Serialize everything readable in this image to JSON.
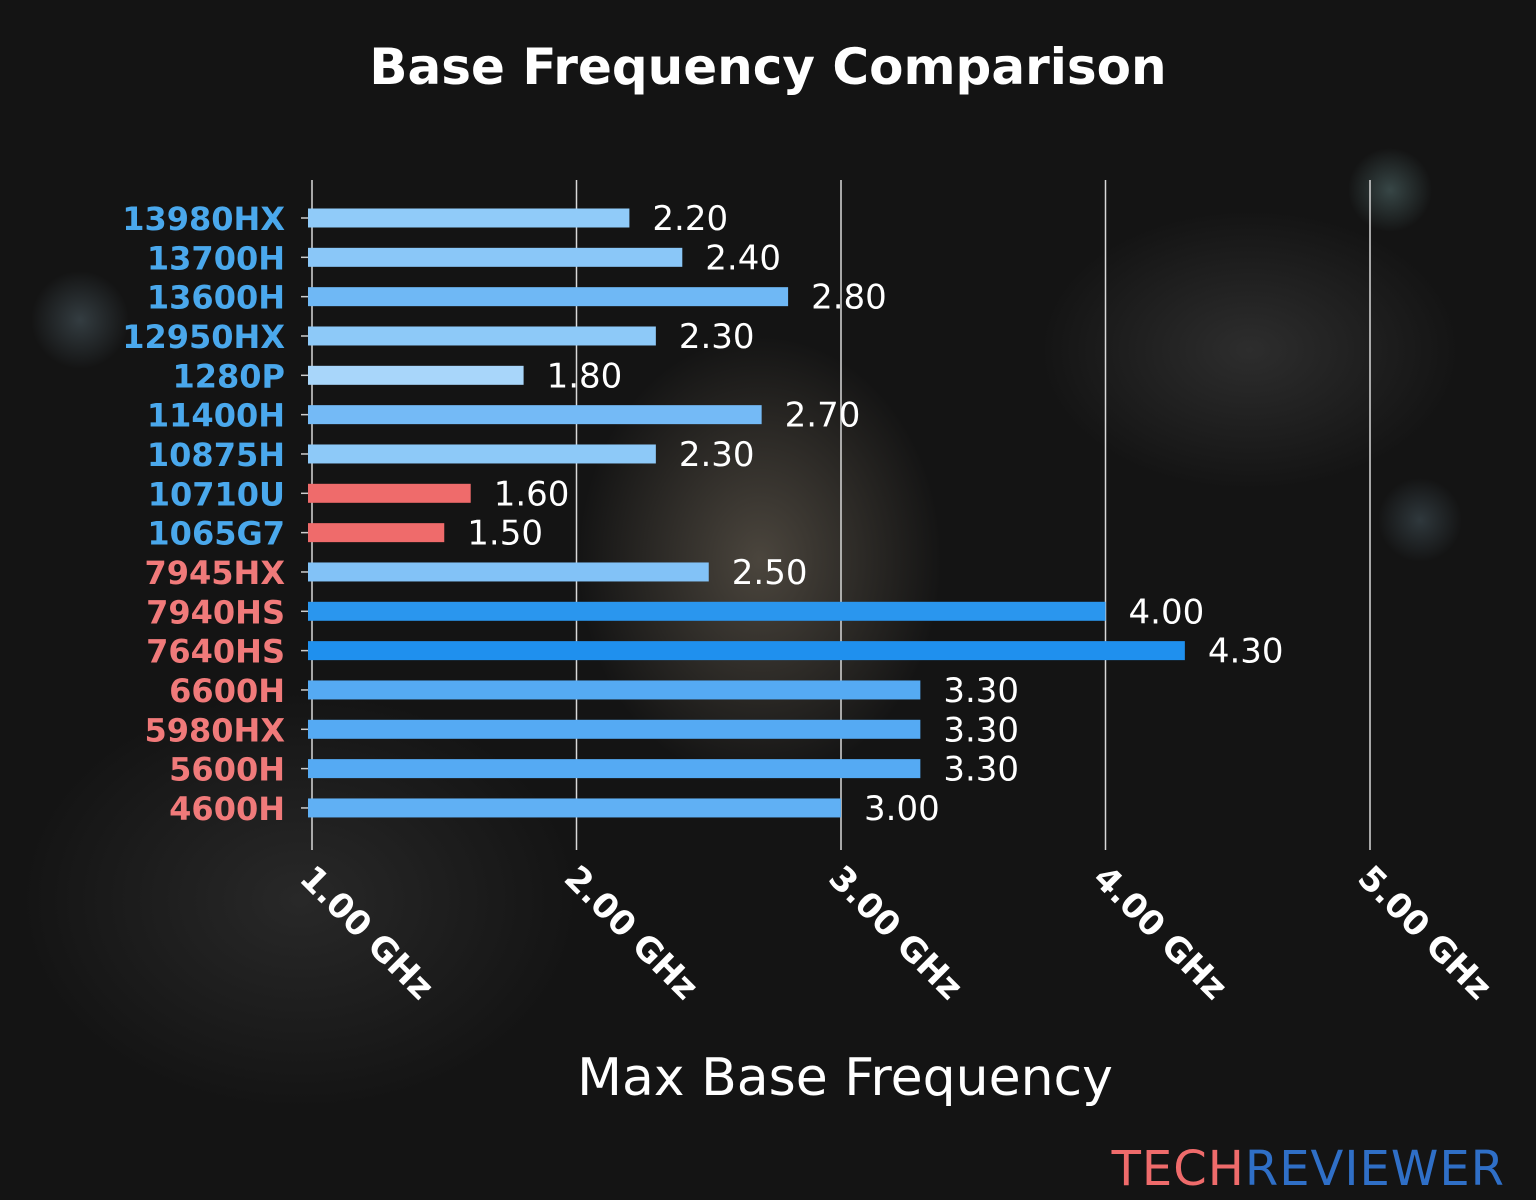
{
  "chart_data": {
    "type": "bar",
    "orientation": "horizontal",
    "title": "Base Frequency Comparison",
    "xlabel": "Max Base Frequency",
    "ylabel": "",
    "xlim": [
      1.0,
      5.0
    ],
    "xticks": [
      1.0,
      2.0,
      3.0,
      4.0,
      5.0
    ],
    "xtick_labels": [
      "1.00 GHz",
      "2.00 GHz",
      "3.00 GHz",
      "4.00 GHz",
      "5.00 GHz"
    ],
    "grid": "vertical",
    "categories": [
      "13980HX",
      "13700H",
      "13600H",
      "12950HX",
      "1280P",
      "11400H",
      "10875H",
      "10710U",
      "1065G7",
      "7945HX",
      "7940HS",
      "7640HS",
      "6600H",
      "5980HX",
      "5600H",
      "4600H"
    ],
    "values": [
      2.2,
      2.4,
      2.8,
      2.3,
      1.8,
      2.7,
      2.3,
      1.6,
      1.5,
      2.5,
      4.0,
      4.3,
      3.3,
      3.3,
      3.3,
      3.0
    ],
    "value_labels": [
      "2.20",
      "2.40",
      "2.80",
      "2.30",
      "1.80",
      "2.70",
      "2.30",
      "1.60",
      "1.50",
      "2.50",
      "4.00",
      "4.30",
      "3.30",
      "3.30",
      "3.30",
      "3.00"
    ],
    "category_colors": [
      "#4aa8ec",
      "#4aa8ec",
      "#4aa8ec",
      "#4aa8ec",
      "#4aa8ec",
      "#4aa8ec",
      "#4aa8ec",
      "#4aa8ec",
      "#4aa8ec",
      "#f07a7a",
      "#f07a7a",
      "#f07a7a",
      "#f07a7a",
      "#f07a7a",
      "#f07a7a",
      "#f07a7a"
    ],
    "bar_colors": [
      "#90cbf9",
      "#8ac7f8",
      "#6fb8f5",
      "#8dc9f8",
      "#a8d6fa",
      "#74baf6",
      "#8dc9f8",
      "#ef6b6b",
      "#ef6b6b",
      "#82c2f7",
      "#2a96ee",
      "#1f90ee",
      "#55aaf3",
      "#55aaf3",
      "#55aaf3",
      "#60b0f4"
    ]
  },
  "watermark": {
    "part1": "TECH",
    "part2": "REVIEWER",
    "color1": "#ef6b6b",
    "color2": "#2f6fc7"
  }
}
